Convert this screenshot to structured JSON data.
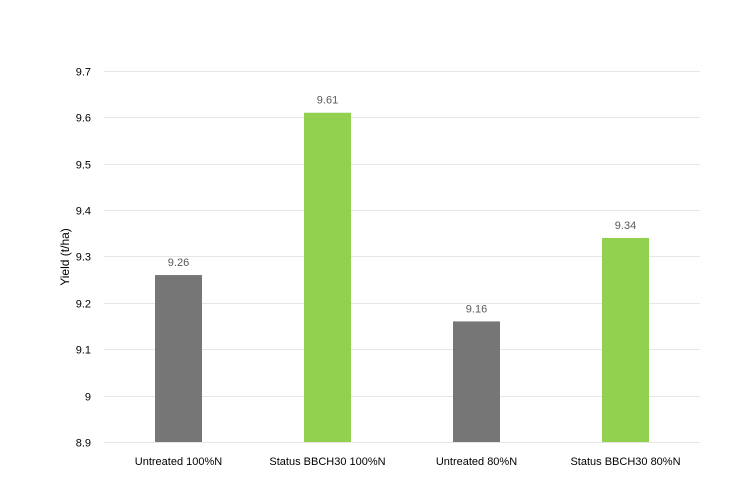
{
  "chart_data": {
    "type": "bar",
    "title": "",
    "xlabel": "",
    "ylabel": "Yield (t/ha)",
    "categories": [
      "Untreated 100%N",
      "Status BBCH30 100%N",
      "Untreated 80%N",
      "Status BBCH30 80%N"
    ],
    "values": [
      9.26,
      9.61,
      9.16,
      9.34
    ],
    "data_labels": [
      "9.26",
      "9.61",
      "9.16",
      "9.34"
    ],
    "bar_colors": [
      "#767676",
      "#92d050",
      "#767676",
      "#92d050"
    ],
    "ylim": [
      8.9,
      9.7
    ],
    "y_ticks": [
      8.9,
      9.0,
      9.1,
      9.2,
      9.3,
      9.4,
      9.5,
      9.6,
      9.7
    ],
    "y_tick_labels": [
      "8.9",
      "9",
      "9.1",
      "9.2",
      "9.3",
      "9.4",
      "9.5",
      "9.6",
      "9.7"
    ],
    "grid": true,
    "legend": "none"
  }
}
